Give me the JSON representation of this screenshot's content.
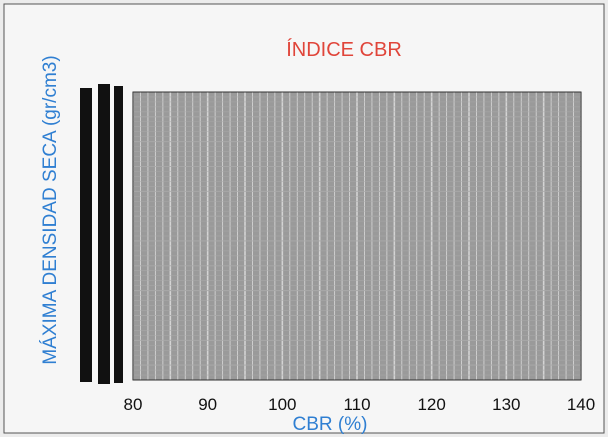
{
  "chart_data": {
    "type": "scatter",
    "title": "ÍNDICE CBR",
    "xlabel": "CBR (%)",
    "ylabel": "MÁXIMA DENSIDAD SECA (gr/cm3)",
    "xlim": [
      80,
      140
    ],
    "x_ticks": [
      80,
      90,
      100,
      110,
      120,
      130,
      140
    ],
    "series": [],
    "grid": true
  },
  "colors": {
    "title": "#e0453a",
    "axis_label": "#2f7fd2",
    "plot_fill": "#9a9a9a",
    "grid": "#d4d4d4",
    "frame": "#333333"
  }
}
